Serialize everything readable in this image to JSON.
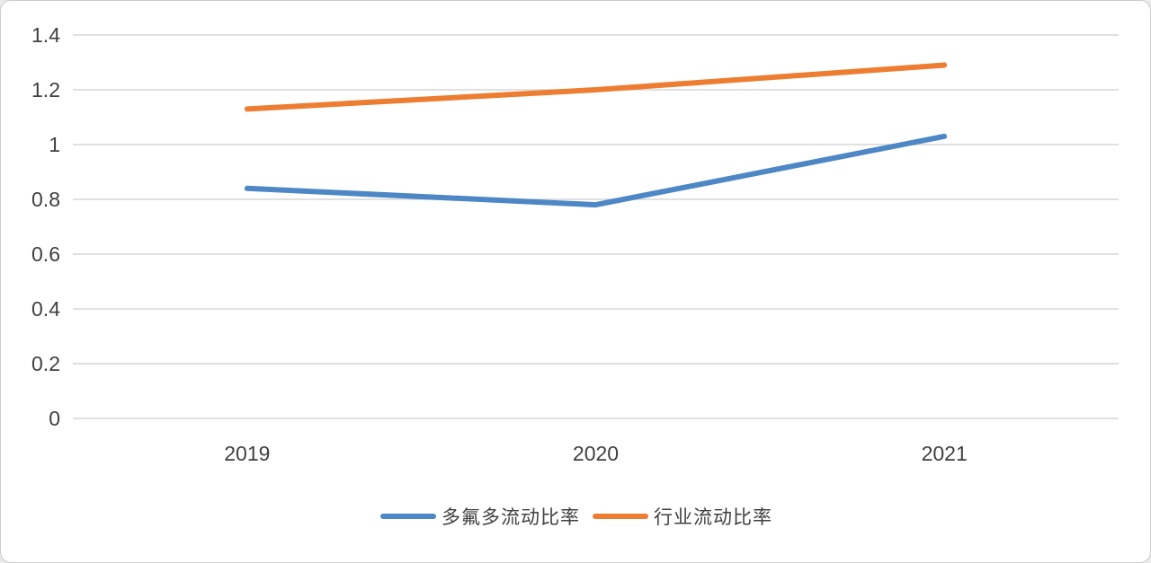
{
  "chart_data": {
    "type": "line",
    "x": [
      "2019",
      "2020",
      "2021"
    ],
    "series": [
      {
        "name": "多氟多流动比率",
        "color": "#4E87C5",
        "values": [
          0.84,
          0.78,
          1.03
        ]
      },
      {
        "name": "行业流动比率",
        "color": "#ED7D31",
        "values": [
          1.13,
          1.2,
          1.29
        ]
      }
    ],
    "title": "",
    "xlabel": "",
    "ylabel": "",
    "ylim": [
      0,
      1.4
    ],
    "ytick_step": 0.2,
    "grid": true,
    "legend_position": "bottom",
    "gridline_color": "#d6d6d6",
    "axis_text_color": "#404040",
    "line_width": 6
  }
}
